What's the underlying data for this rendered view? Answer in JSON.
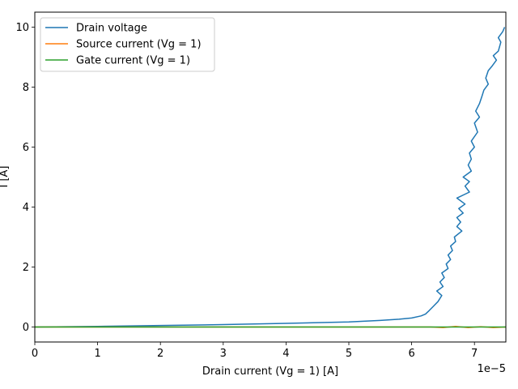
{
  "chart_data": {
    "type": "line",
    "xlabel": "Drain current (Vg = 1) [A]",
    "ylabel": "I [A]",
    "x_offset_label": "1e−5",
    "xlim": [
      0,
      7.5e-05
    ],
    "ylim": [
      -0.5,
      10.5
    ],
    "xticks": [
      0,
      1e-05,
      2e-05,
      3e-05,
      4e-05,
      5e-05,
      6e-05,
      7e-05
    ],
    "xtick_labels": [
      "0",
      "1",
      "2",
      "3",
      "4",
      "5",
      "6",
      "7"
    ],
    "yticks": [
      0,
      2,
      4,
      6,
      8,
      10
    ],
    "ytick_labels": [
      "0",
      "2",
      "4",
      "6",
      "8",
      "10"
    ],
    "grid": false,
    "legend_position": "top-left",
    "series": [
      {
        "name": "Drain voltage",
        "color": "#1f77b4",
        "points": [
          [
            0,
            0
          ],
          [
            1e-05,
            0.02
          ],
          [
            2e-05,
            0.05
          ],
          [
            3e-05,
            0.08
          ],
          [
            4e-05,
            0.12
          ],
          [
            5e-05,
            0.17
          ],
          [
            5.5e-05,
            0.22
          ],
          [
            5.8e-05,
            0.26
          ],
          [
            6e-05,
            0.3
          ],
          [
            6.15e-05,
            0.37
          ],
          [
            6.22e-05,
            0.43
          ],
          [
            6.28e-05,
            0.55
          ],
          [
            6.35e-05,
            0.7
          ],
          [
            6.42e-05,
            0.85
          ],
          [
            6.48e-05,
            1.05
          ],
          [
            6.4e-05,
            1.2
          ],
          [
            6.5e-05,
            1.35
          ],
          [
            6.45e-05,
            1.5
          ],
          [
            6.52e-05,
            1.65
          ],
          [
            6.48e-05,
            1.8
          ],
          [
            6.58e-05,
            1.95
          ],
          [
            6.55e-05,
            2.1
          ],
          [
            6.62e-05,
            2.25
          ],
          [
            6.58e-05,
            2.4
          ],
          [
            6.65e-05,
            2.55
          ],
          [
            6.62e-05,
            2.7
          ],
          [
            6.7e-05,
            2.85
          ],
          [
            6.68e-05,
            3.0
          ],
          [
            6.8e-05,
            3.2
          ],
          [
            6.72e-05,
            3.35
          ],
          [
            6.78e-05,
            3.5
          ],
          [
            6.72e-05,
            3.65
          ],
          [
            6.82e-05,
            3.8
          ],
          [
            6.75e-05,
            3.95
          ],
          [
            6.85e-05,
            4.1
          ],
          [
            6.72e-05,
            4.3
          ],
          [
            6.92e-05,
            4.5
          ],
          [
            6.85e-05,
            4.7
          ],
          [
            6.92e-05,
            4.85
          ],
          [
            6.82e-05,
            5.0
          ],
          [
            6.95e-05,
            5.2
          ],
          [
            6.9e-05,
            5.4
          ],
          [
            6.95e-05,
            5.6
          ],
          [
            6.92e-05,
            5.8
          ],
          [
            7e-05,
            6.0
          ],
          [
            6.95e-05,
            6.2
          ],
          [
            7.05e-05,
            6.5
          ],
          [
            7e-05,
            6.8
          ],
          [
            7.08e-05,
            7.0
          ],
          [
            7.02e-05,
            7.2
          ],
          [
            7.08e-05,
            7.45
          ],
          [
            7.12e-05,
            7.7
          ],
          [
            7.15e-05,
            7.9
          ],
          [
            7.22e-05,
            8.1
          ],
          [
            7.18e-05,
            8.3
          ],
          [
            7.22e-05,
            8.55
          ],
          [
            7.28e-05,
            8.7
          ],
          [
            7.35e-05,
            8.9
          ],
          [
            7.3e-05,
            9.05
          ],
          [
            7.38e-05,
            9.2
          ],
          [
            7.42e-05,
            9.5
          ],
          [
            7.38e-05,
            9.65
          ],
          [
            7.45e-05,
            9.85
          ],
          [
            7.48e-05,
            10.0
          ]
        ]
      },
      {
        "name": "Source current (Vg = 1)",
        "color": "#ff7f0e",
        "points": [
          [
            0,
            0
          ],
          [
            6.3e-05,
            0
          ],
          [
            6.5e-05,
            -0.02
          ],
          [
            6.7e-05,
            0.02
          ],
          [
            6.9e-05,
            -0.02
          ],
          [
            7.1e-05,
            0.01
          ],
          [
            7.3e-05,
            -0.02
          ],
          [
            7.5e-05,
            0
          ]
        ]
      },
      {
        "name": "Gate current (Vg = 1)",
        "color": "#2ca02c",
        "points": [
          [
            0,
            0
          ],
          [
            7.5e-05,
            0
          ]
        ]
      }
    ]
  }
}
